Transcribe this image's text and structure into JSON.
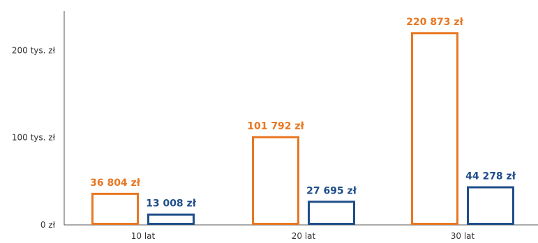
{
  "chart_data": {
    "type": "bar",
    "categories": [
      "10 lat",
      "20 lat",
      "30 lat"
    ],
    "series": [
      {
        "values": [
          36804,
          101792,
          220873
        ],
        "labels": [
          "36 804 zł",
          "101 792 zł",
          "220 873 zł"
        ],
        "color": "#E87722",
        "style": "outlined"
      },
      {
        "values": [
          13008,
          27695,
          44278
        ],
        "labels": [
          "13 008 zł",
          "27 695 zł",
          "44 278 zł"
        ],
        "color": "#1F4E89",
        "style": "outlined"
      }
    ],
    "y_ticks": [
      {
        "value": 0,
        "label": "0 zł"
      },
      {
        "value": 100000,
        "label": "100 tys. zł"
      },
      {
        "value": 200000,
        "label": "200 tys. zł"
      }
    ],
    "ylim": [
      0,
      245000
    ],
    "grid": false,
    "legend": "none",
    "title": "",
    "xlabel": "",
    "ylabel": ""
  }
}
